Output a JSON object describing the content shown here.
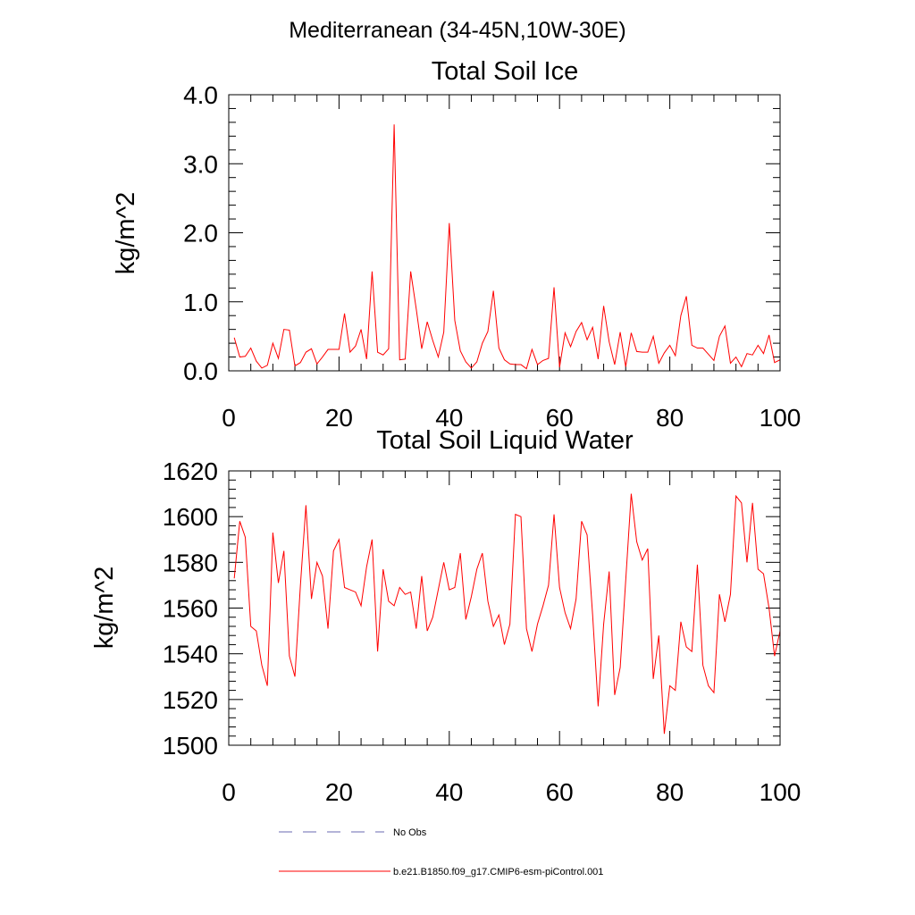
{
  "colors": {
    "model_line": "#ff0000",
    "obs_line": "#6a6ab0",
    "axis": "#000000"
  },
  "figure": {
    "title": "Mediterranean (34-45N,10W-30E)"
  },
  "legend": {
    "items": [
      {
        "label": "No Obs",
        "style": "dashed",
        "color": "#6a6ab0"
      },
      {
        "label": "b.e21.B1850.f09_g17.CMIP6-esm-piControl.001",
        "style": "solid",
        "color": "#ff0000"
      }
    ]
  },
  "chart_data": [
    {
      "type": "line",
      "title": "Total Soil Ice",
      "xlabel": "",
      "ylabel": "kg/m^2",
      "xlim": [
        0,
        100
      ],
      "ylim": [
        0,
        4
      ],
      "xticks": [
        0,
        20,
        40,
        60,
        80,
        100
      ],
      "yticks": [
        0,
        1,
        2,
        3,
        4
      ],
      "ytick_labels": [
        "0.0",
        "1.0",
        "2.0",
        "3.0",
        "4.0"
      ],
      "xtick_labels": [
        "0",
        "20",
        "40",
        "60",
        "80",
        "100"
      ],
      "series": [
        {
          "name": "b.e21.B1850.f09_g17.CMIP6-esm-piControl.001",
          "x_start": 1,
          "values": [
            0.48,
            0.2,
            0.21,
            0.33,
            0.14,
            0.04,
            0.08,
            0.4,
            0.18,
            0.6,
            0.59,
            0.07,
            0.12,
            0.27,
            0.32,
            0.1,
            0.2,
            0.31,
            0.31,
            0.31,
            0.83,
            0.27,
            0.36,
            0.6,
            0.17,
            1.44,
            0.27,
            0.23,
            0.32,
            3.57,
            0.16,
            0.17,
            1.44,
            0.9,
            0.32,
            0.71,
            0.44,
            0.2,
            0.56,
            2.14,
            0.73,
            0.29,
            0.13,
            0.04,
            0.13,
            0.4,
            0.57,
            1.16,
            0.33,
            0.16,
            0.1,
            0.09,
            0.09,
            0.03,
            0.31,
            0.09,
            0.15,
            0.18,
            1.21,
            0.05,
            0.55,
            0.35,
            0.57,
            0.7,
            0.45,
            0.63,
            0.17,
            0.94,
            0.42,
            0.09,
            0.56,
            0.06,
            0.55,
            0.28,
            0.27,
            0.27,
            0.5,
            0.11,
            0.26,
            0.37,
            0.22,
            0.8,
            1.08,
            0.37,
            0.33,
            0.33,
            0.24,
            0.15,
            0.5,
            0.65,
            0.11,
            0.2,
            0.06,
            0.25,
            0.23,
            0.37,
            0.25,
            0.52,
            0.12,
            0.16
          ]
        }
      ]
    },
    {
      "type": "line",
      "title": "Total Soil Liquid Water",
      "xlabel": "",
      "ylabel": "kg/m^2",
      "xlim": [
        0,
        100
      ],
      "ylim": [
        1500,
        1620
      ],
      "xticks": [
        0,
        20,
        40,
        60,
        80,
        100
      ],
      "yticks": [
        1500,
        1520,
        1540,
        1560,
        1580,
        1600,
        1620
      ],
      "ytick_labels": [
        "1500",
        "1520",
        "1540",
        "1560",
        "1580",
        "1600",
        "1620"
      ],
      "xtick_labels": [
        "0",
        "20",
        "40",
        "60",
        "80",
        "100"
      ],
      "series": [
        {
          "name": "b.e21.B1850.f09_g17.CMIP6-esm-piControl.001",
          "x_start": 1,
          "values": [
            1573,
            1598,
            1591,
            1552,
            1550,
            1535,
            1526,
            1593,
            1571,
            1585,
            1539,
            1530,
            1570,
            1605,
            1564,
            1580,
            1574,
            1551,
            1585,
            1590,
            1569,
            1568,
            1567,
            1561,
            1578,
            1590,
            1541,
            1577,
            1563,
            1561,
            1569,
            1566,
            1567,
            1551,
            1574,
            1550,
            1556,
            1568,
            1580,
            1568,
            1569,
            1584,
            1555,
            1565,
            1577,
            1584,
            1563,
            1552,
            1557,
            1544,
            1553,
            1601,
            1600,
            1551,
            1541,
            1553,
            1561,
            1570,
            1601,
            1569,
            1558,
            1551,
            1564,
            1598,
            1592,
            1557,
            1517,
            1553,
            1576,
            1522,
            1534,
            1572,
            1610,
            1589,
            1581,
            1586,
            1529,
            1548,
            1505,
            1526,
            1524,
            1554,
            1543,
            1541,
            1579,
            1535,
            1526,
            1523,
            1566,
            1554,
            1566,
            1609,
            1606,
            1580,
            1606,
            1577,
            1575,
            1560,
            1539,
            1550
          ]
        }
      ]
    }
  ]
}
